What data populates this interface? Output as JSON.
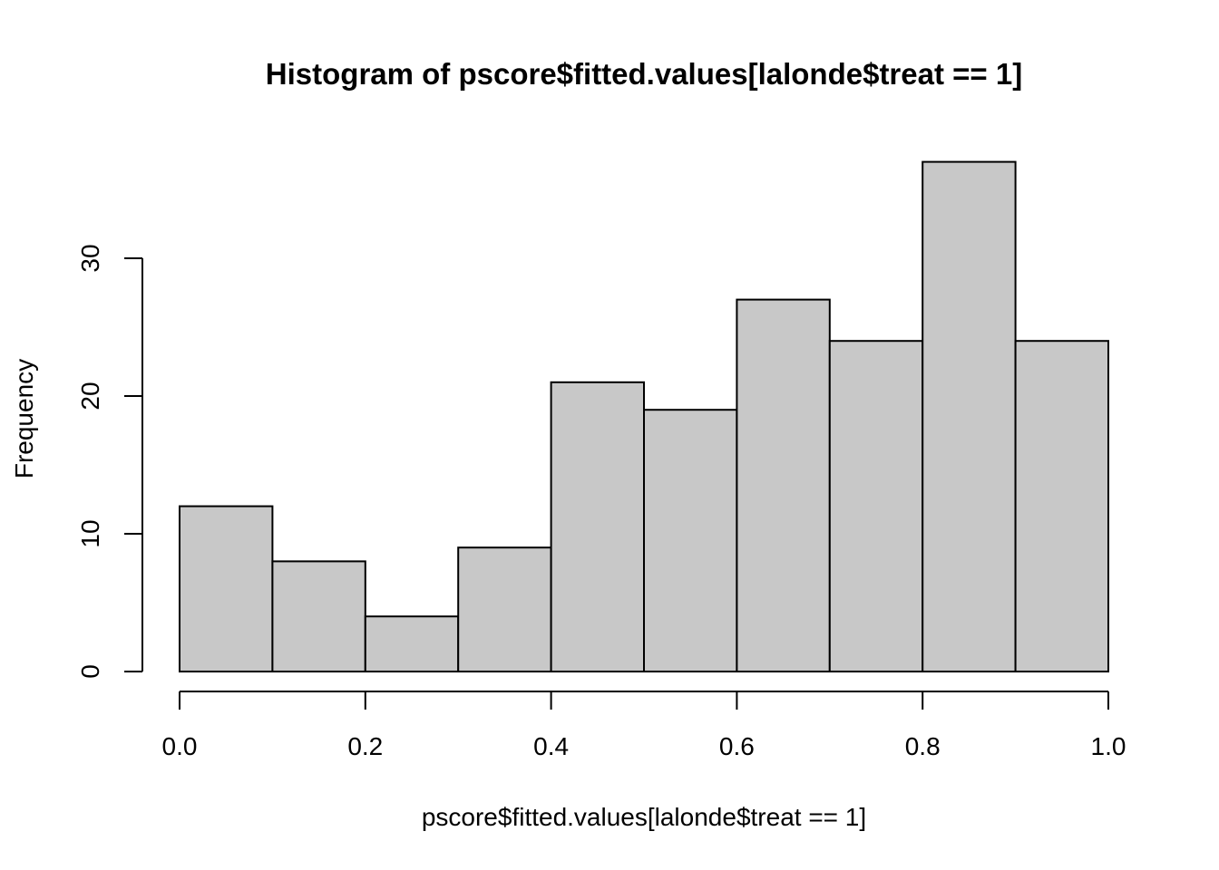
{
  "chart_data": {
    "type": "bar",
    "title": "Histogram of pscore$fitted.values[lalonde$treat == 1]",
    "xlabel": "pscore$fitted.values[lalonde$treat == 1]",
    "ylabel": "Frequency",
    "bins": [
      {
        "from": 0.0,
        "to": 0.1,
        "count": 12
      },
      {
        "from": 0.1,
        "to": 0.2,
        "count": 8
      },
      {
        "from": 0.2,
        "to": 0.3,
        "count": 4
      },
      {
        "from": 0.3,
        "to": 0.4,
        "count": 9
      },
      {
        "from": 0.4,
        "to": 0.5,
        "count": 21
      },
      {
        "from": 0.5,
        "to": 0.6,
        "count": 19
      },
      {
        "from": 0.6,
        "to": 0.7,
        "count": 27
      },
      {
        "from": 0.7,
        "to": 0.8,
        "count": 24
      },
      {
        "from": 0.8,
        "to": 0.9,
        "count": 37
      },
      {
        "from": 0.9,
        "to": 1.0,
        "count": 24
      }
    ],
    "xlim": [
      0,
      1
    ],
    "ylim": [
      0,
      37
    ],
    "x_ticks": [
      "0.0",
      "0.2",
      "0.4",
      "0.6",
      "0.8",
      "1.0"
    ],
    "y_ticks": [
      "0",
      "10",
      "20",
      "30"
    ],
    "bar_color": "#c8c8c8",
    "border_color": "#000000",
    "grid": false,
    "legend": "none"
  }
}
